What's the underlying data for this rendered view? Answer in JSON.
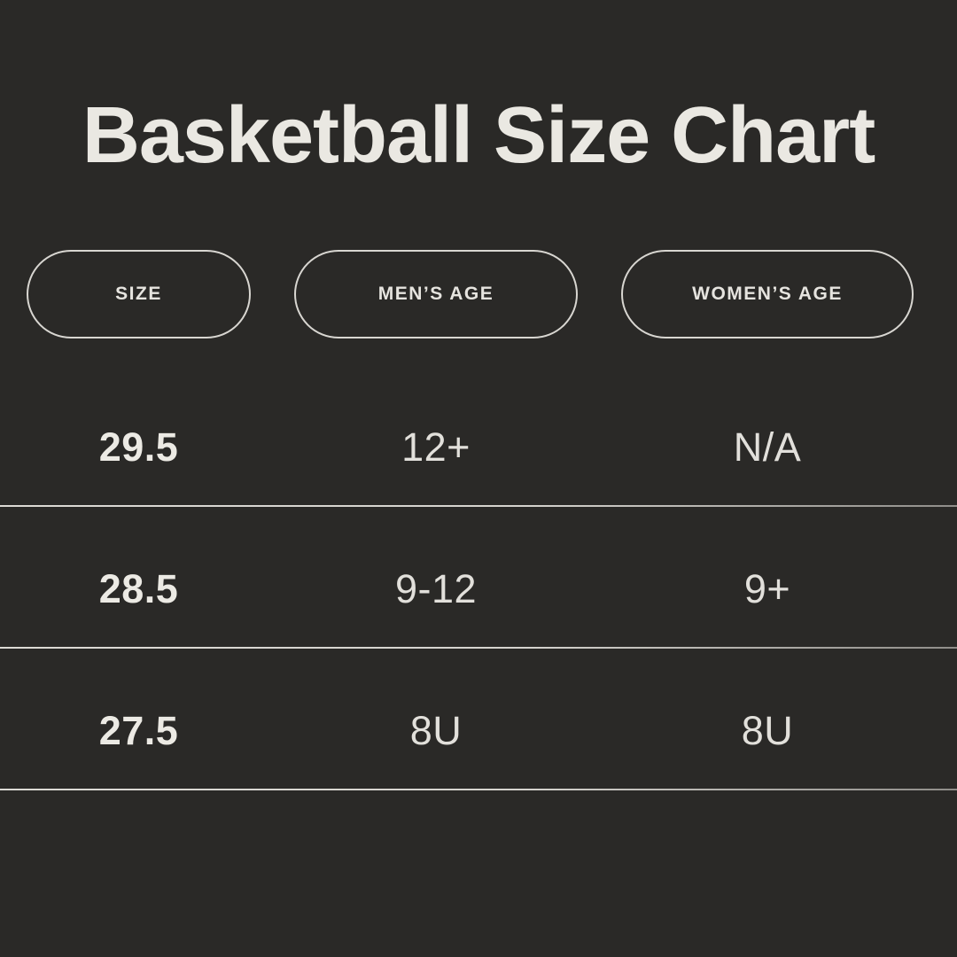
{
  "page": {
    "title": "Basketball Size Chart"
  },
  "table": {
    "headers": [
      "SIZE",
      "MEN’S AGE",
      "WOMEN’S AGE"
    ],
    "rows": [
      {
        "cells": [
          "29.5",
          "12+",
          "N/A"
        ]
      },
      {
        "cells": [
          "28.5",
          "9-12",
          "9+"
        ]
      },
      {
        "cells": [
          "27.5",
          "8U",
          "8U"
        ]
      }
    ]
  },
  "chart_data": {
    "type": "table",
    "title": "Basketball Size Chart",
    "columns": [
      "SIZE",
      "MEN’S AGE",
      "WOMEN’S AGE"
    ],
    "rows": [
      [
        "29.5",
        "12+",
        "N/A"
      ],
      [
        "28.5",
        "9-12",
        "9+"
      ],
      [
        "27.5",
        "8U",
        "8U"
      ]
    ]
  },
  "colors": {
    "background": "#2a2927",
    "title_text": "#eae8e2",
    "pill_border": "#d8d6d1",
    "pill_text": "#e6e4df",
    "value_text": "#e2e0db",
    "size_value_text": "#eceae4",
    "divider": "#d5d3ce"
  }
}
